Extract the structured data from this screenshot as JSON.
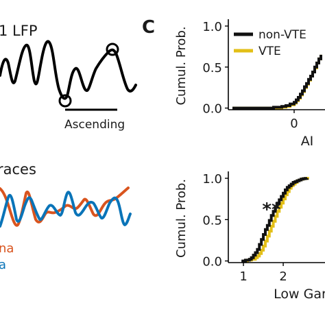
{
  "panel_top_left": {
    "title": "1 LFP",
    "annotation": "Ascending"
  },
  "panel_bottom_left": {
    "title": "races",
    "legend": [
      {
        "label": "na",
        "color": "#d9541e"
      },
      {
        "label": "a",
        "color": "#0a74b8"
      }
    ]
  },
  "panel_label": "C",
  "colors": {
    "non_vte": "#111111",
    "vte": "#e3bf17",
    "orange_trace": "#d9541e",
    "blue_trace": "#0a74b8"
  },
  "chart_data": [
    {
      "type": "line",
      "id": "ai-cdf",
      "xlabel": "AI",
      "ylabel": "Cumul. Prob.",
      "xticks": [
        "0"
      ],
      "yticks": [
        "0.0",
        "0.5",
        "1.0"
      ],
      "xlim": [
        -1.6,
        0.75
      ],
      "ylim": [
        -0.02,
        1.05
      ],
      "legend": {
        "placement": "top-left",
        "entries": [
          "non-VTE",
          "VTE"
        ]
      },
      "series": [
        {
          "name": "non-VTE",
          "x": [
            -1.5,
            -1.0,
            -0.5,
            -0.3,
            -0.2,
            -0.1,
            0.0,
            0.05,
            0.1,
            0.15,
            0.2,
            0.25,
            0.3,
            0.35,
            0.4,
            0.45,
            0.5,
            0.55,
            0.6,
            0.65
          ],
          "y": [
            0.0,
            0.0,
            0.01,
            0.02,
            0.03,
            0.05,
            0.07,
            0.1,
            0.13,
            0.17,
            0.21,
            0.26,
            0.3,
            0.35,
            0.39,
            0.44,
            0.5,
            0.55,
            0.6,
            0.65
          ]
        },
        {
          "name": "VTE",
          "x": [
            -1.5,
            -1.0,
            -0.5,
            -0.3,
            -0.2,
            -0.1,
            0.0,
            0.05,
            0.1,
            0.15,
            0.2,
            0.25,
            0.3,
            0.35,
            0.4,
            0.45,
            0.5,
            0.55,
            0.6,
            0.65
          ],
          "y": [
            0.0,
            0.0,
            0.0,
            0.01,
            0.02,
            0.04,
            0.06,
            0.09,
            0.12,
            0.16,
            0.2,
            0.25,
            0.29,
            0.34,
            0.39,
            0.44,
            0.49,
            0.55,
            0.6,
            0.65
          ]
        }
      ]
    },
    {
      "type": "line",
      "id": "lowgamma-cdf",
      "xlabel": "Low Gar",
      "ylabel": "Cumul. Prob.",
      "xticks": [
        "1",
        "2"
      ],
      "yticks": [
        "0.0",
        "0.5",
        "1.0"
      ],
      "xlim": [
        0.62,
        3.05
      ],
      "ylim": [
        -0.02,
        1.05
      ],
      "annotation": "**",
      "series": [
        {
          "name": "non-VTE",
          "x": [
            0.95,
            1.05,
            1.15,
            1.2,
            1.25,
            1.3,
            1.35,
            1.4,
            1.45,
            1.5,
            1.55,
            1.6,
            1.65,
            1.7,
            1.75,
            1.8,
            1.85,
            1.9,
            1.95,
            2.0,
            2.05,
            2.1,
            2.15,
            2.2,
            2.25,
            2.3,
            2.35,
            2.4,
            2.45,
            2.5,
            2.55,
            2.6
          ],
          "y": [
            0.0,
            0.01,
            0.02,
            0.04,
            0.07,
            0.1,
            0.14,
            0.2,
            0.26,
            0.32,
            0.38,
            0.43,
            0.49,
            0.55,
            0.6,
            0.65,
            0.7,
            0.74,
            0.78,
            0.82,
            0.86,
            0.89,
            0.91,
            0.93,
            0.95,
            0.96,
            0.97,
            0.98,
            0.99,
            0.995,
            0.998,
            1.0
          ]
        },
        {
          "name": "VTE",
          "x": [
            1.0,
            1.1,
            1.2,
            1.3,
            1.35,
            1.4,
            1.45,
            1.5,
            1.55,
            1.6,
            1.65,
            1.7,
            1.75,
            1.8,
            1.85,
            1.9,
            1.95,
            2.0,
            2.05,
            2.1,
            2.15,
            2.2,
            2.25,
            2.3,
            2.35,
            2.4,
            2.45,
            2.5,
            2.55,
            2.6,
            2.65
          ],
          "y": [
            0.0,
            0.01,
            0.02,
            0.04,
            0.06,
            0.09,
            0.13,
            0.18,
            0.24,
            0.3,
            0.36,
            0.42,
            0.48,
            0.54,
            0.6,
            0.65,
            0.7,
            0.75,
            0.8,
            0.84,
            0.88,
            0.91,
            0.93,
            0.95,
            0.97,
            0.98,
            0.99,
            0.995,
            0.998,
            1.0,
            1.0
          ]
        }
      ]
    }
  ]
}
